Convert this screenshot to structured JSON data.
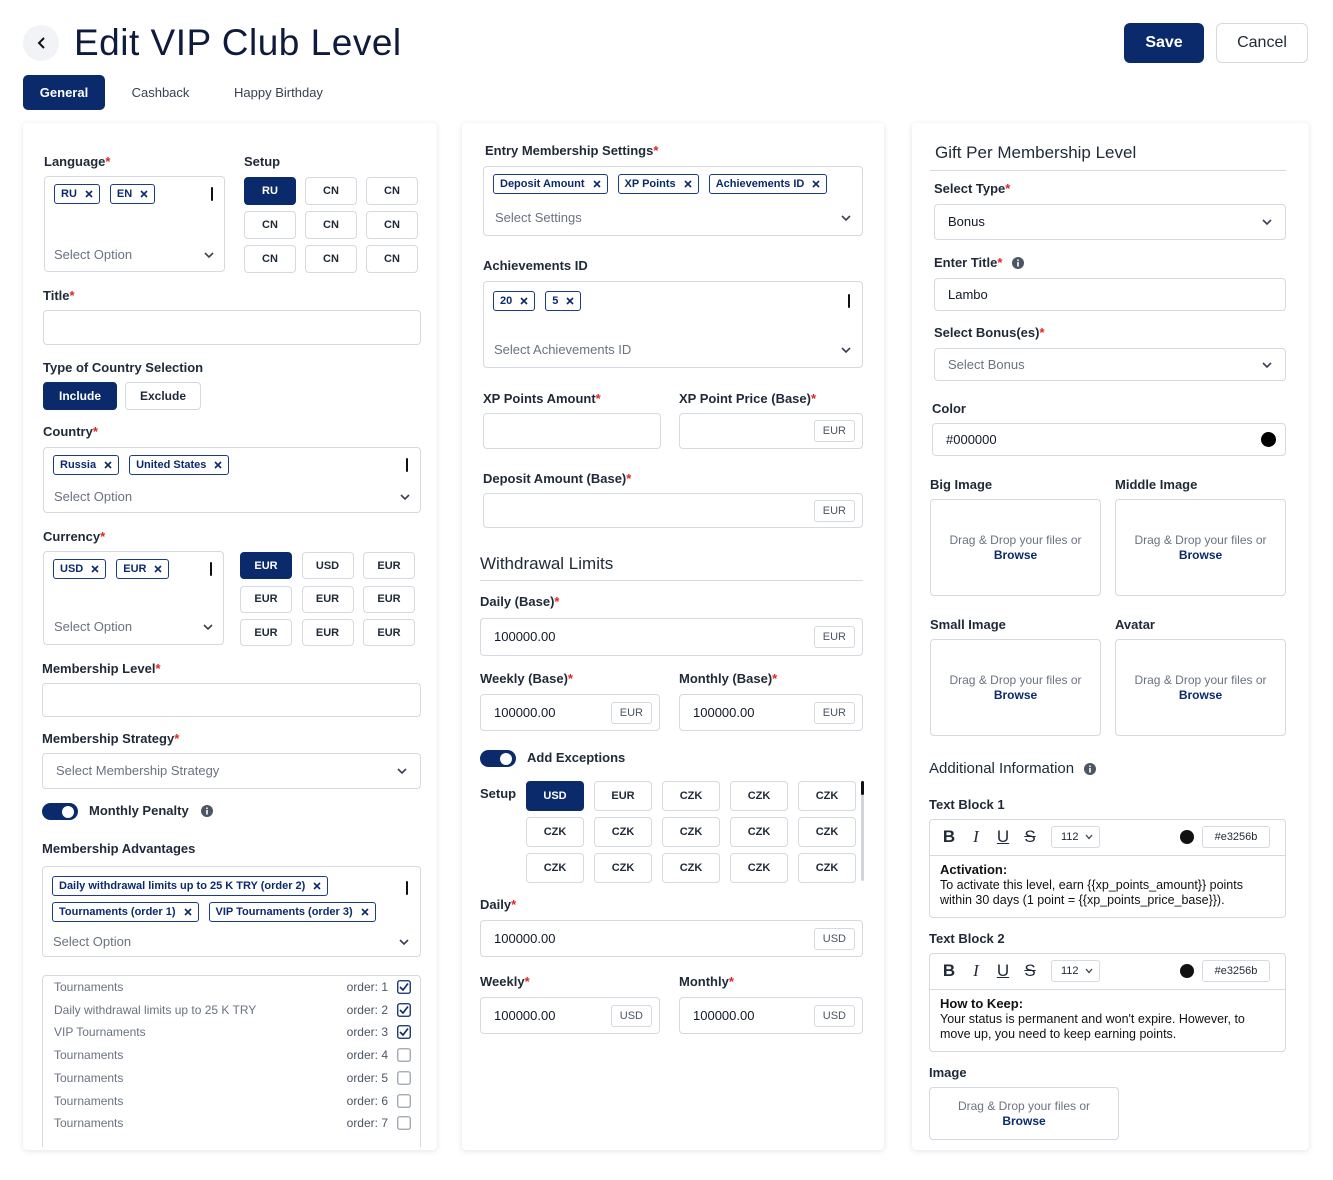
{
  "header": {
    "title": "Edit VIP Club Level",
    "save": "Save",
    "cancel": "Cancel"
  },
  "tabs": {
    "items": [
      "General",
      "Cashback",
      "Happy Birthday"
    ],
    "active": 0
  },
  "required_mark": "*",
  "dropzone": {
    "text": "Drag & Drop your files or",
    "link": "Browse"
  },
  "left": {
    "language": {
      "label": "Language",
      "required": true,
      "chips": [
        "RU",
        "EN"
      ],
      "placeholder": "Select Option"
    },
    "setup": {
      "label": "Setup",
      "options": [
        "RU",
        "CN",
        "CN",
        "CN",
        "CN",
        "CN",
        "CN",
        "CN",
        "CN"
      ],
      "selected": 0
    },
    "title": {
      "label": "Title",
      "required": true
    },
    "country_type": {
      "label": "Type of Country Selection",
      "options": [
        "Include",
        "Exclude"
      ],
      "selected": 0
    },
    "country": {
      "label": "Country",
      "required": true,
      "chips": [
        "Russia",
        "United States"
      ],
      "placeholder": "Select Option"
    },
    "currency": {
      "label": "Currency",
      "required": true,
      "chips": [
        "USD",
        "EUR"
      ],
      "placeholder": "Select Option",
      "options": [
        "EUR",
        "USD",
        "EUR",
        "EUR",
        "EUR",
        "EUR",
        "EUR",
        "EUR",
        "EUR"
      ],
      "selected": 0
    },
    "membership_level": {
      "label": "Membership Level",
      "required": true
    },
    "membership_strategy": {
      "label": "Membership Strategy",
      "required": true,
      "placeholder": "Select Membership Strategy"
    },
    "monthly_penalty": {
      "label": "Monthly Penalty",
      "enabled": true
    },
    "advantages": {
      "label": "Membership Advantages",
      "chips": [
        "Daily withdrawal limits up to 25 K TRY (order 2)",
        "Tournaments (order 1)",
        "VIP Tournaments (order 3)"
      ],
      "placeholder": "Select Option",
      "list": [
        {
          "name": "Tournaments",
          "order": "order: 1",
          "checked": true
        },
        {
          "name": "Daily withdrawal limits up to 25 K TRY",
          "order": "order: 2",
          "checked": true
        },
        {
          "name": "VIP Tournaments",
          "order": "order: 3",
          "checked": true
        },
        {
          "name": "Tournaments",
          "order": "order: 4",
          "checked": false
        },
        {
          "name": "Tournaments",
          "order": "order: 5",
          "checked": false
        },
        {
          "name": "Tournaments",
          "order": "order: 6",
          "checked": false
        },
        {
          "name": "Tournaments",
          "order": "order: 7",
          "checked": false
        }
      ]
    }
  },
  "middle": {
    "entry": {
      "label": "Entry Membership Settings",
      "required": true,
      "chips": [
        "Deposit Amount",
        "XP Points",
        "Achievements ID"
      ],
      "placeholder": "Select Settings"
    },
    "achievements": {
      "label": "Achievements ID",
      "chips": [
        "20",
        "5"
      ],
      "placeholder": "Select Achievements ID"
    },
    "xp_amount": {
      "label": "XP Points Amount",
      "required": true
    },
    "xp_price": {
      "label": "XP Point Price (Base)",
      "required": true,
      "suffix": "EUR"
    },
    "deposit": {
      "label": "Deposit Amount (Base)",
      "required": true,
      "suffix": "EUR"
    },
    "withdrawal_title": "Withdrawal Limits",
    "daily_base": {
      "label": "Daily (Base)",
      "required": true,
      "value": "100000.00",
      "suffix": "EUR"
    },
    "weekly_base": {
      "label": "Weekly (Base)",
      "required": true,
      "value": "100000.00",
      "suffix": "EUR"
    },
    "monthly_base": {
      "label": "Monthly (Base)",
      "required": true,
      "value": "100000.00",
      "suffix": "EUR"
    },
    "exceptions": {
      "label": "Add Exceptions",
      "enabled": true
    },
    "setup": {
      "label": "Setup",
      "options": [
        "USD",
        "EUR",
        "CZK",
        "CZK",
        "CZK",
        "CZK",
        "CZK",
        "CZK",
        "CZK",
        "CZK",
        "CZK",
        "CZK",
        "CZK",
        "CZK",
        "CZK"
      ],
      "selected": 0
    },
    "daily": {
      "label": "Daily",
      "required": true,
      "value": "100000.00",
      "suffix": "USD"
    },
    "weekly": {
      "label": "Weekly",
      "required": true,
      "value": "100000.00",
      "suffix": "USD"
    },
    "monthly": {
      "label": "Monthly",
      "required": true,
      "value": "100000.00",
      "suffix": "USD"
    }
  },
  "right": {
    "title": "Gift Per Membership Level",
    "select_type": {
      "label": "Select Type",
      "required": true,
      "value": "Bonus"
    },
    "enter_title": {
      "label": "Enter Title",
      "required": true,
      "value": "Lambo"
    },
    "bonuses": {
      "label": "Select Bonus(es)",
      "required": true,
      "placeholder": "Select Bonus"
    },
    "color": {
      "label": "Color",
      "value": "#000000"
    },
    "images": [
      {
        "label": "Big Image"
      },
      {
        "label": "Middle Image"
      },
      {
        "label": "Small Image"
      },
      {
        "label": "Avatar"
      }
    ],
    "additional_title": "Additional Information",
    "toolbar": [
      "B",
      "I",
      "U",
      "S"
    ],
    "text_blocks": [
      {
        "label": "Text Block 1",
        "size": "112",
        "color": "#e3256b",
        "heading": "Activation:",
        "body": "To activate this level, earn {{xp_points_amount}} points within 30 days (1 point = {{xp_points_price_base}})."
      },
      {
        "label": "Text Block 2",
        "size": "112",
        "color": "#e3256b",
        "heading": "How to Keep:",
        "body": "Your status is permanent and won't expire. However, to move up, you need to keep earning points."
      }
    ],
    "image": {
      "label": "Image"
    }
  }
}
